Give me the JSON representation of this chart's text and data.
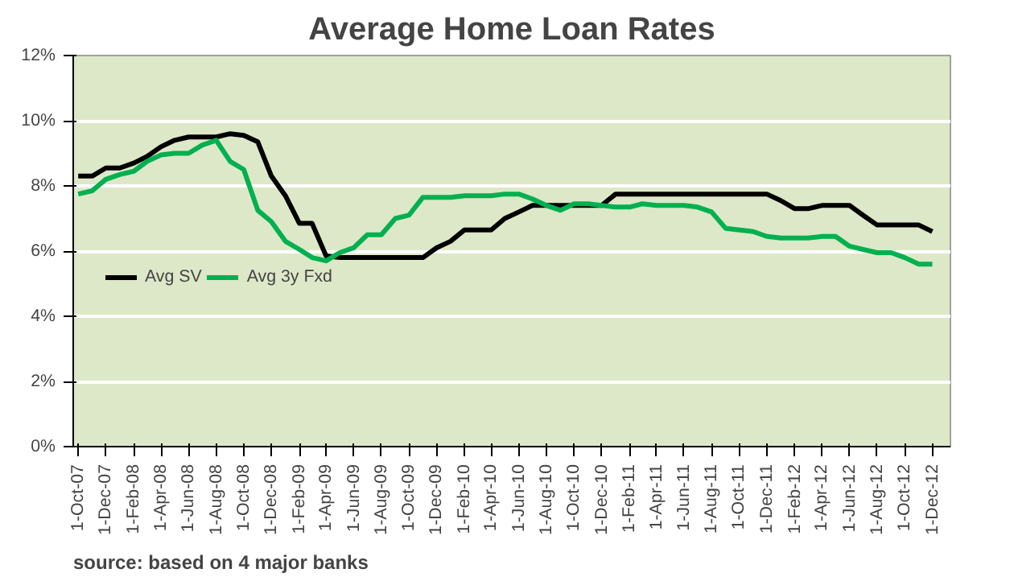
{
  "chart_data": {
    "type": "line",
    "title": "Average Home Loan Rates",
    "x": [
      "2007-10",
      "2007-11",
      "2007-12",
      "2008-01",
      "2008-02",
      "2008-03",
      "2008-04",
      "2008-05",
      "2008-06",
      "2008-07",
      "2008-08",
      "2008-09",
      "2008-10",
      "2008-11",
      "2008-12",
      "2009-01",
      "2009-02",
      "2009-03",
      "2009-04",
      "2009-05",
      "2009-06",
      "2009-07",
      "2009-08",
      "2009-09",
      "2009-10",
      "2009-11",
      "2009-12",
      "2010-01",
      "2010-02",
      "2010-03",
      "2010-04",
      "2010-05",
      "2010-06",
      "2010-07",
      "2010-08",
      "2010-09",
      "2010-10",
      "2010-11",
      "2010-12",
      "2011-01",
      "2011-02",
      "2011-03",
      "2011-04",
      "2011-05",
      "2011-06",
      "2011-07",
      "2011-08",
      "2011-09",
      "2011-10",
      "2011-11",
      "2011-12",
      "2012-01",
      "2012-02",
      "2012-03",
      "2012-04",
      "2012-05",
      "2012-06",
      "2012-07",
      "2012-08",
      "2012-09",
      "2012-10",
      "2012-11",
      "2012-12"
    ],
    "series": [
      {
        "name": "Avg SV",
        "color": "#000000",
        "values": [
          8.3,
          8.3,
          8.55,
          8.55,
          8.7,
          8.9,
          9.2,
          9.4,
          9.5,
          9.5,
          9.5,
          9.6,
          9.55,
          9.35,
          8.3,
          7.7,
          6.85,
          6.85,
          5.85,
          5.8,
          5.8,
          5.8,
          5.8,
          5.8,
          5.8,
          5.8,
          6.1,
          6.3,
          6.65,
          6.65,
          6.65,
          7.0,
          7.2,
          7.4,
          7.4,
          7.4,
          7.4,
          7.4,
          7.4,
          7.75,
          7.75,
          7.75,
          7.75,
          7.75,
          7.75,
          7.75,
          7.75,
          7.75,
          7.75,
          7.75,
          7.75,
          7.55,
          7.3,
          7.3,
          7.4,
          7.4,
          7.4,
          7.1,
          6.8,
          6.8,
          6.8,
          6.8,
          6.6
        ]
      },
      {
        "name": "Avg 3y Fxd",
        "color": "#00b050",
        "values": [
          7.75,
          7.85,
          8.2,
          8.35,
          8.45,
          8.75,
          8.95,
          9.0,
          9.0,
          9.25,
          9.4,
          8.75,
          8.5,
          7.25,
          6.9,
          6.3,
          6.05,
          5.8,
          5.7,
          5.95,
          6.1,
          6.5,
          6.5,
          7.0,
          7.1,
          7.65,
          7.65,
          7.65,
          7.7,
          7.7,
          7.7,
          7.75,
          7.75,
          7.6,
          7.4,
          7.25,
          7.45,
          7.45,
          7.4,
          7.35,
          7.35,
          7.45,
          7.4,
          7.4,
          7.4,
          7.35,
          7.2,
          6.7,
          6.65,
          6.6,
          6.45,
          6.4,
          6.4,
          6.4,
          6.45,
          6.45,
          6.15,
          6.05,
          5.95,
          5.95,
          5.8,
          5.6,
          5.6
        ]
      }
    ],
    "xlim": [
      "2007-09-20",
      "2013-01-10"
    ],
    "xticks": [
      {
        "value": "2007-10-01",
        "label": "1-Oct-07"
      },
      {
        "value": "2007-12-01",
        "label": "1-Dec-07"
      },
      {
        "value": "2008-02-01",
        "label": "1-Feb-08"
      },
      {
        "value": "2008-04-01",
        "label": "1-Apr-08"
      },
      {
        "value": "2008-06-01",
        "label": "1-Jun-08"
      },
      {
        "value": "2008-08-01",
        "label": "1-Aug-08"
      },
      {
        "value": "2008-10-01",
        "label": "1-Oct-08"
      },
      {
        "value": "2008-12-01",
        "label": "1-Dec-08"
      },
      {
        "value": "2009-02-01",
        "label": "1-Feb-09"
      },
      {
        "value": "2009-04-01",
        "label": "1-Apr-09"
      },
      {
        "value": "2009-06-01",
        "label": "1-Jun-09"
      },
      {
        "value": "2009-08-01",
        "label": "1-Aug-09"
      },
      {
        "value": "2009-10-01",
        "label": "1-Oct-09"
      },
      {
        "value": "2009-12-01",
        "label": "1-Dec-09"
      },
      {
        "value": "2010-02-01",
        "label": "1-Feb-10"
      },
      {
        "value": "2010-04-01",
        "label": "1-Apr-10"
      },
      {
        "value": "2010-06-01",
        "label": "1-Jun-10"
      },
      {
        "value": "2010-08-01",
        "label": "1-Aug-10"
      },
      {
        "value": "2010-10-01",
        "label": "1-Oct-10"
      },
      {
        "value": "2010-12-01",
        "label": "1-Dec-10"
      },
      {
        "value": "2011-02-01",
        "label": "1-Feb-11"
      },
      {
        "value": "2011-04-01",
        "label": "1-Apr-11"
      },
      {
        "value": "2011-06-01",
        "label": "1-Jun-11"
      },
      {
        "value": "2011-08-01",
        "label": "1-Aug-11"
      },
      {
        "value": "2011-10-01",
        "label": "1-Oct-11"
      },
      {
        "value": "2011-12-01",
        "label": "1-Dec-11"
      },
      {
        "value": "2012-02-01",
        "label": "1-Feb-12"
      },
      {
        "value": "2012-04-01",
        "label": "1-Apr-12"
      },
      {
        "value": "2012-06-01",
        "label": "1-Jun-12"
      },
      {
        "value": "2012-08-01",
        "label": "1-Aug-12"
      },
      {
        "value": "2012-10-01",
        "label": "1-Oct-12"
      },
      {
        "value": "2012-12-01",
        "label": "1-Dec-12"
      }
    ],
    "ylim": [
      0,
      12
    ],
    "yticks": [
      {
        "value": 0,
        "label": "0%"
      },
      {
        "value": 2,
        "label": "2%"
      },
      {
        "value": 4,
        "label": "4%"
      },
      {
        "value": 6,
        "label": "6%"
      },
      {
        "value": 8,
        "label": "8%"
      },
      {
        "value": 10,
        "label": "10%"
      },
      {
        "value": 12,
        "label": "12%"
      }
    ],
    "grid": "y",
    "legend": "left",
    "line_style": "solid",
    "annotations": [
      "source: based on 4 major banks"
    ]
  }
}
